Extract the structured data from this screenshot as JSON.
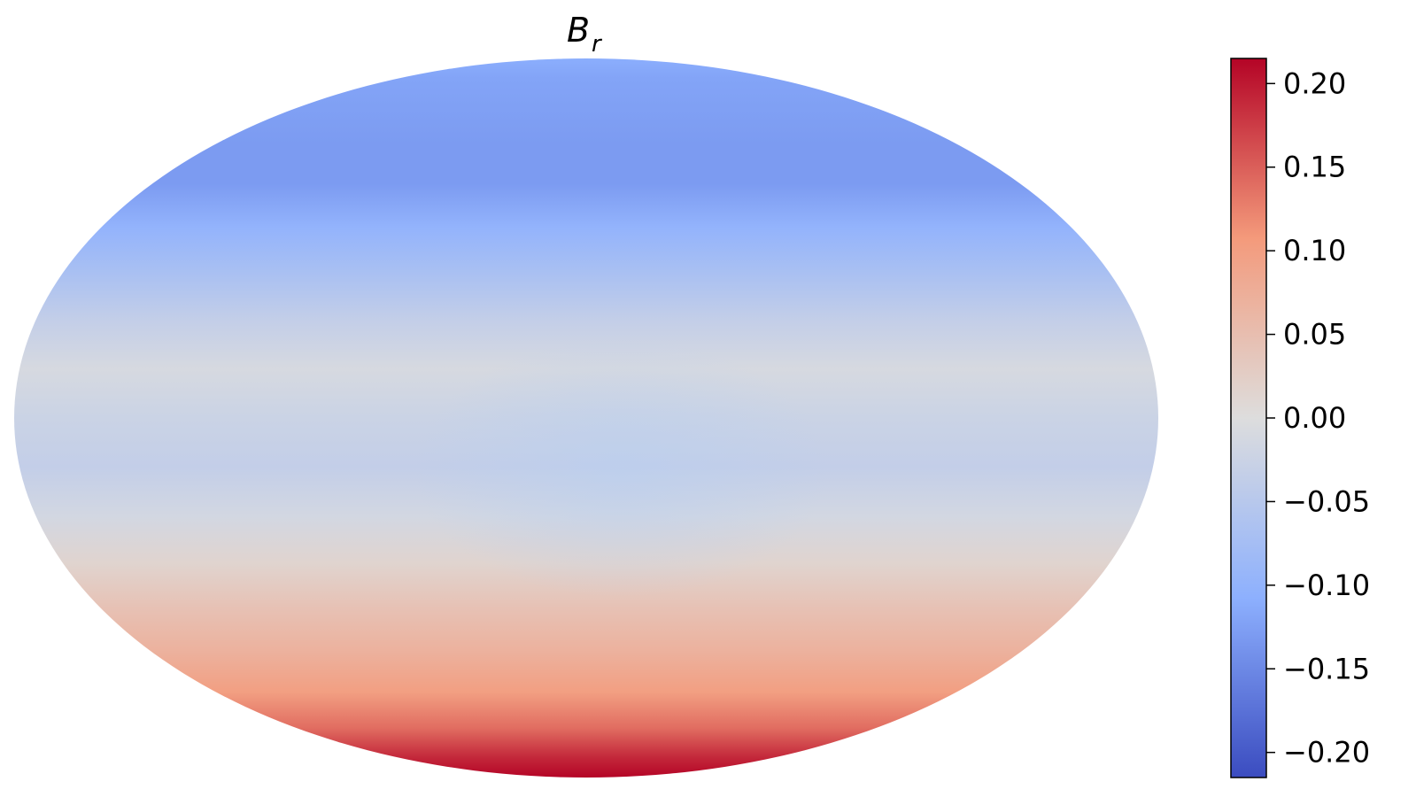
{
  "chart_data": {
    "type": "heatmap",
    "title_main": "B",
    "title_sub": "r",
    "projection": "mollweide",
    "grid": false,
    "colormap": "coolwarm",
    "colorbar": {
      "placement": "right",
      "vmin": -0.215,
      "vmax": 0.215,
      "ticks": [
        0.2,
        0.15,
        0.1,
        0.05,
        0.0,
        -0.05,
        -0.1,
        -0.15,
        -0.2
      ],
      "tick_labels": [
        "0.20",
        "0.15",
        "0.10",
        "0.05",
        "0.00",
        "−0.05",
        "−0.10",
        "−0.15",
        "−0.20"
      ]
    },
    "latitude_profile": {
      "latitude_deg": [
        90,
        80,
        70,
        60,
        50,
        40,
        30,
        20,
        10,
        0,
        -10,
        -20,
        -30,
        -40,
        -50,
        -60,
        -70,
        -80,
        -90
      ],
      "value": [
        -0.11,
        -0.12,
        -0.125,
        -0.13,
        -0.13,
        -0.1,
        -0.07,
        -0.035,
        -0.01,
        -0.025,
        -0.035,
        -0.015,
        0.015,
        0.045,
        0.07,
        0.1,
        0.14,
        0.19,
        0.215
      ]
    }
  }
}
